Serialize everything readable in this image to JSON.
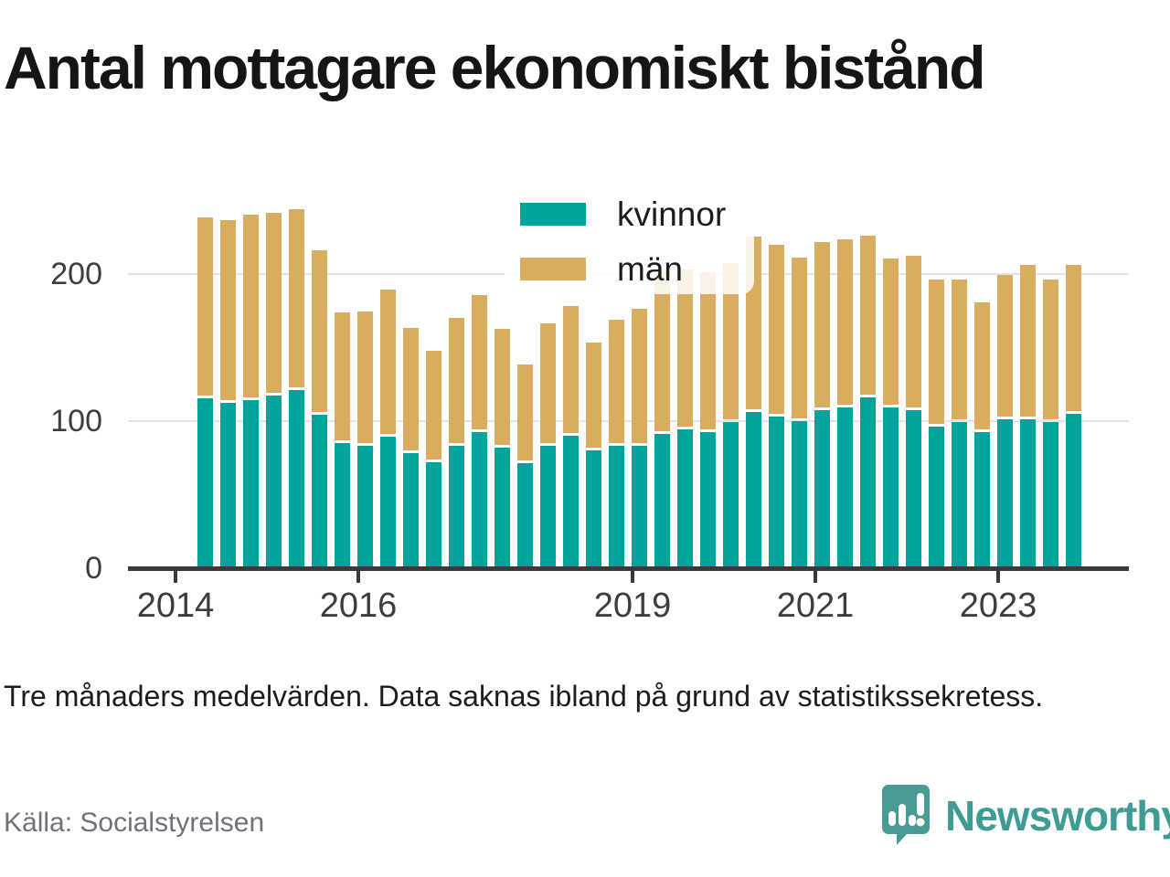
{
  "title": "Antal mottagare ekonomiskt bistånd",
  "footnote": "Tre månaders medelvärden. Data saknas ibland på grund av statistikssekretess.",
  "source": "Källa: Socialstyrelsen",
  "branding": {
    "name": "Newsworthy",
    "icon": "newsworthy-speech-bubble-chart-icon",
    "color": "#3e9c94"
  },
  "colors": {
    "kvinnor": "#00a49c",
    "man": "#d9ad5f",
    "grid": "#e3e3e3",
    "axis": "#3a3a3a",
    "text": "#1c1c1c",
    "muted_text": "#71717a"
  },
  "legend": {
    "items": [
      {
        "label": "kvinnor",
        "color": "#00a49c"
      },
      {
        "label": "män",
        "color": "#d9ad5f"
      }
    ]
  },
  "chart_data": {
    "type": "bar",
    "stacked": true,
    "title": "Antal mottagare ekonomiskt bistånd",
    "xlabel": "",
    "ylabel": "",
    "ylim": [
      0,
      250
    ],
    "y_ticks": [
      0,
      100,
      200
    ],
    "grid": "horizontal",
    "legend_position": "top-center",
    "x_axis_years": {
      "start": 2014,
      "end": 2024,
      "labeled_ticks": [
        "2014",
        "2016",
        "2019",
        "2021",
        "2023"
      ]
    },
    "categories": [
      "2014-Q2",
      "2014-Q3",
      "2014-Q4",
      "2015-Q1",
      "2015-Q2",
      "2015-Q3",
      "2015-Q4",
      "2016-Q1",
      "2016-Q2",
      "2016-Q3",
      "2016-Q4",
      "2017-Q1",
      "2017-Q2",
      "2017-Q3",
      "2017-Q4",
      "2018-Q1",
      "2018-Q2",
      "2018-Q3",
      "2018-Q4",
      "2019-Q1",
      "2019-Q2",
      "2019-Q3",
      "2019-Q4",
      "2020-Q1",
      "2020-Q2",
      "2020-Q3",
      "2020-Q4",
      "2021-Q1",
      "2021-Q2",
      "2021-Q3",
      "2021-Q4",
      "2022-Q1",
      "2022-Q2",
      "2022-Q3",
      "2022-Q4",
      "2023-Q1",
      "2023-Q2",
      "2023-Q3",
      "2023-Q4"
    ],
    "series": [
      {
        "name": "kvinnor",
        "color": "#00a49c",
        "values": [
          114,
          111,
          113,
          116,
          120,
          103,
          84,
          82,
          88,
          77,
          71,
          82,
          91,
          81,
          70,
          82,
          89,
          79,
          82,
          82,
          90,
          93,
          91,
          98,
          105,
          102,
          99,
          106,
          108,
          115,
          108,
          106,
          95,
          98,
          91,
          100,
          100,
          98,
          104
        ]
      },
      {
        "name": "män",
        "color": "#d9ad5f",
        "values": [
          123,
          124,
          126,
          124,
          123,
          112,
          89,
          91,
          100,
          85,
          76,
          87,
          93,
          81,
          67,
          83,
          88,
          73,
          86,
          93,
          111,
          109,
          109,
          108,
          119,
          117,
          111,
          114,
          114,
          110,
          101,
          105,
          100,
          97,
          88,
          98,
          105,
          97,
          101
        ]
      }
    ]
  }
}
